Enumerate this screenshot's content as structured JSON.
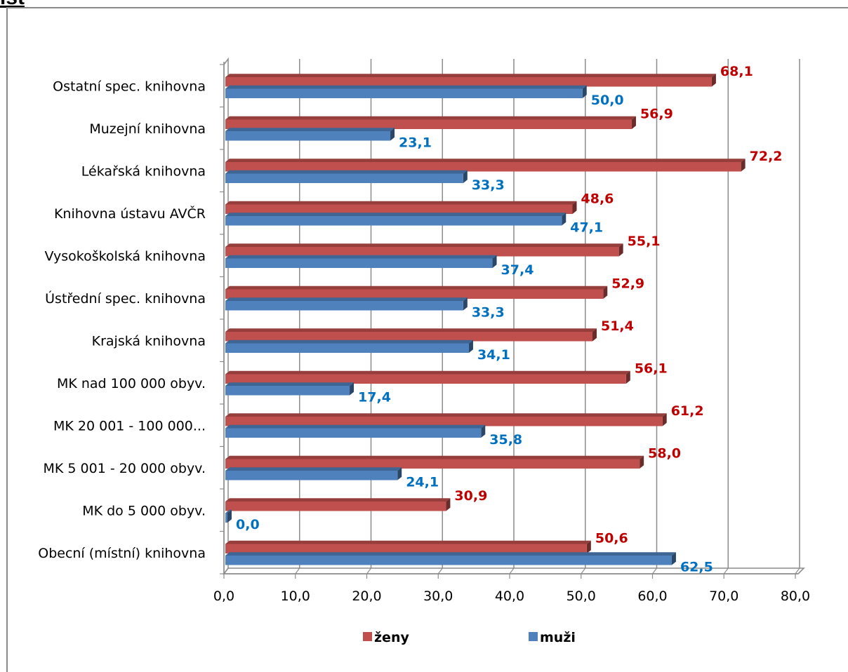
{
  "page": {
    "top_label": "lst"
  },
  "chart_data": {
    "type": "bar",
    "orientation": "horizontal",
    "categories": [
      "Ostatní spec. knihovna",
      "Muzejní knihovna",
      "Lékařská knihovna",
      "Knihovna ústavu AVČR",
      "Vysokoškolská knihovna",
      "Ústřední spec. knihovna",
      "Krajská knihovna",
      "MK nad 100 000 obyv.",
      "MK 20 001 - 100 000...",
      "MK  5 001 - 20 000 obyv.",
      "MK do 5 000 obyv.",
      "Obecní (místní) knihovna"
    ],
    "series": [
      {
        "name": "ženy",
        "color": "#c0504d",
        "label_color": "#c00000",
        "values": [
          68.1,
          56.9,
          72.2,
          48.6,
          55.1,
          52.9,
          51.4,
          56.1,
          61.2,
          58.0,
          30.9,
          50.6
        ],
        "labels": [
          "68,1",
          "56,9",
          "72,2",
          "48,6",
          "55,1",
          "52,9",
          "51,4",
          "56,1",
          "61,2",
          "58,0",
          "30,9",
          "50,6"
        ]
      },
      {
        "name": "muži",
        "color": "#4f81bd",
        "label_color": "#0070c0",
        "values": [
          50.0,
          23.1,
          33.3,
          47.1,
          37.4,
          33.3,
          34.1,
          17.4,
          35.8,
          24.1,
          0.0,
          62.5
        ],
        "labels": [
          "50,0",
          "23,1",
          "33,3",
          "47,1",
          "37,4",
          "33,3",
          "34,1",
          "17,4",
          "35,8",
          "24,1",
          "0,0",
          "62,5"
        ]
      }
    ],
    "xlim": [
      0,
      80
    ],
    "x_ticks": [
      "0,0",
      "10,0",
      "20,0",
      "30,0",
      "40,0",
      "50,0",
      "60,0",
      "70,0",
      "80,0"
    ],
    "grid": true,
    "legend": "bottom",
    "style": "3d-bar"
  }
}
